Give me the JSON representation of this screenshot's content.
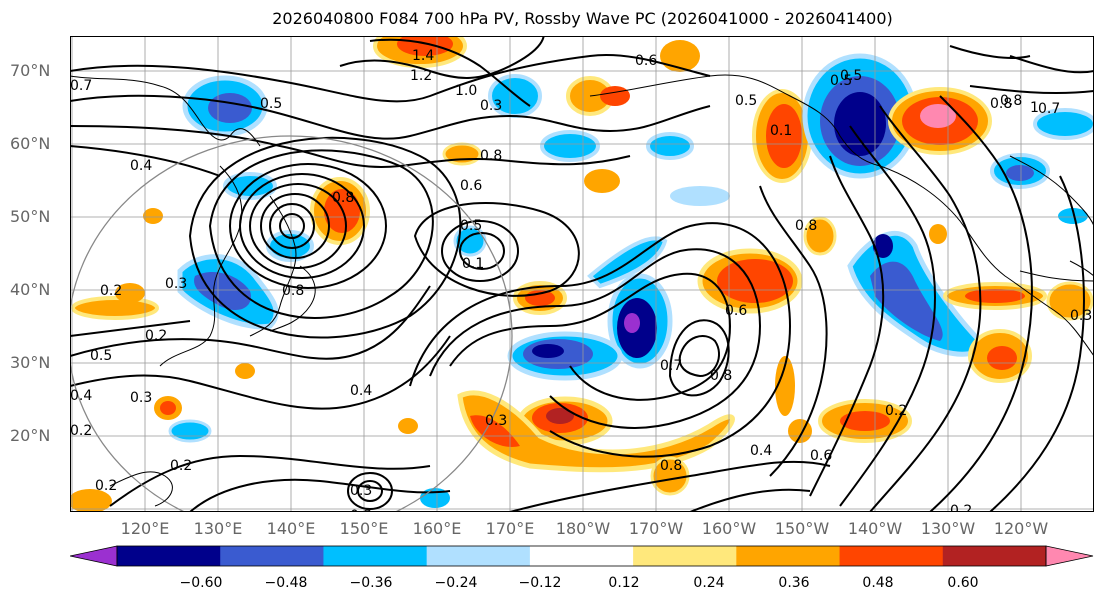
{
  "title": "2026040800 F084 700 hPa PV, Rossby Wave PC (2026041000 - 2026041400)",
  "lat_labels": [
    "70°N",
    "60°N",
    "50°N",
    "40°N",
    "30°N",
    "20°N"
  ],
  "lon_labels": [
    "120°E",
    "130°E",
    "140°E",
    "150°E",
    "160°E",
    "170°E",
    "180°W",
    "170°W",
    "160°W",
    "150°W",
    "140°W",
    "130°W",
    "120°W"
  ],
  "colorbar": {
    "colors": [
      "#9b30d0",
      "#00008b",
      "#3a5bd0",
      "#00bfff",
      "#b0e0ff",
      "#ffffff",
      "#ffe87c",
      "#ffa500",
      "#ff4500",
      "#b22222",
      "#ff88b0"
    ],
    "tick_labels": [
      "−0.60",
      "−0.48",
      "−0.36",
      "−0.24",
      "−0.12",
      "0.12",
      "0.24",
      "0.36",
      "0.48",
      "0.60"
    ],
    "levels": [
      -0.6,
      -0.48,
      -0.36,
      -0.24,
      -0.12,
      0.12,
      0.24,
      0.36,
      0.48,
      0.6
    ]
  },
  "contour_labels": [
    "1.4",
    "1.2",
    "1.0",
    "0.6",
    "0.5",
    "0.8",
    "0.7",
    "0.5",
    "0.3",
    "0.8",
    "0.6",
    "0.5",
    "0.4",
    "0.8",
    "0.1",
    "0.6",
    "0.8",
    "0.2",
    "0.3",
    "0.2",
    "0.5",
    "0.4",
    "0.3",
    "0.4",
    "0.7",
    "0.8",
    "0.3",
    "0.6",
    "0.8",
    "0.3",
    "0.2",
    "0.4",
    "0.2",
    "0.2",
    "0.3",
    "0.3",
    "0.8",
    "0.5",
    "0.8",
    "0.2",
    "0.1",
    "0.7",
    "0.5",
    "0.2",
    "1"
  ],
  "chart_data": {
    "type": "map",
    "title": "2026040800 F084 700 hPa PV, Rossby Wave PC (2026041000 - 2026041400)",
    "lat_range": [
      "10°N",
      "75°N"
    ],
    "lon_range": [
      "110°E",
      "110°W"
    ],
    "contour_field": "700 hPa PV",
    "shaded_field": "Rossby Wave PC",
    "shading_levels": [
      -0.6,
      -0.48,
      -0.36,
      -0.24,
      -0.12,
      0.12,
      0.24,
      0.36,
      0.48,
      0.6
    ]
  }
}
